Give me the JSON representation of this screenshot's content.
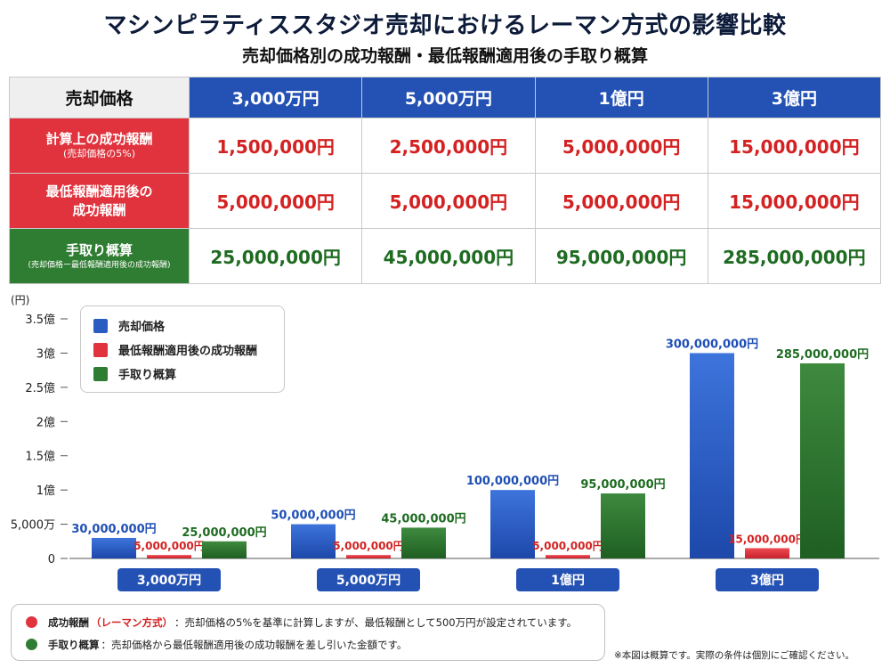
{
  "title": "マシンピラティススタジオ売却におけるレーマン方式の影響比較",
  "subtitle": "売却価格別の成功報酬・最低報酬適用後の手取り概算",
  "table": {
    "corner": "売却価格",
    "columns": [
      "3,000万円",
      "5,000万円",
      "1億円",
      "3億円"
    ],
    "rows": [
      {
        "label": "計算上の成功報酬",
        "sublabel": "(売却価格の5%)",
        "values": [
          "1,500,000円",
          "2,500,000円",
          "5,000,000円",
          "15,000,000円"
        ]
      },
      {
        "label": "最低報酬適用後の",
        "sublabel": "成功報酬",
        "values": [
          "5,000,000円",
          "5,000,000円",
          "5,000,000円",
          "15,000,000円"
        ]
      },
      {
        "label": "手取り概算",
        "sublabel": "(売却価格ー最低報酬適用後の成功報酬)",
        "values": [
          "25,000,000円",
          "45,000,000円",
          "95,000,000円",
          "285,000,000円"
        ]
      }
    ]
  },
  "legend": [
    "売却価格",
    "最低報酬適用後の成功報酬",
    "手取り概算"
  ],
  "colors": {
    "blue": "#2a5dc4",
    "red": "#e0333d",
    "green": "#2f7d32",
    "header_blue": "#2451b4"
  },
  "chart_data": {
    "type": "bar",
    "y_unit_label": "(円)",
    "categories": [
      "3,000万円",
      "5,000万円",
      "1億円",
      "3億円"
    ],
    "series": [
      {
        "name": "売却価格",
        "values": [
          30000000,
          50000000,
          100000000,
          300000000
        ],
        "labels": [
          "30,000,000円",
          "50,000,000円",
          "100,000,000円",
          "300,000,000円"
        ]
      },
      {
        "name": "最低報酬適用後の成功報酬",
        "values": [
          5000000,
          5000000,
          5000000,
          15000000
        ],
        "labels": [
          "5,000,000円",
          "5,000,000円",
          "5,000,000円",
          "15,000,000円"
        ]
      },
      {
        "name": "手取り概算",
        "values": [
          25000000,
          45000000,
          95000000,
          285000000
        ],
        "labels": [
          "25,000,000円",
          "45,000,000円",
          "95,000,000円",
          "285,000,000円"
        ]
      }
    ],
    "ylim": [
      0,
      350000000
    ],
    "yticks": [
      0,
      50000000,
      100000000,
      150000000,
      200000000,
      250000000,
      300000000,
      350000000
    ],
    "ytick_labels": [
      "0",
      "5,000万",
      "1億",
      "1.5億",
      "2億",
      "2.5億",
      "3億",
      "3.5億"
    ],
    "legend_position": "top-left",
    "grid": false
  },
  "notes": [
    {
      "label": "成功報酬",
      "tag": "（レーマン方式）",
      "text": "：売却価格の5%を基準に計算しますが、最低報酬として500万円が設定されています。",
      "color": "#e0333d"
    },
    {
      "label": "手取り概算",
      "tag": "",
      "text": "：売却価格から最低報酬適用後の成功報酬を差し引いた金額です。",
      "color": "#2f7d32"
    }
  ],
  "disclaimer": "※本図は概算です。実際の条件は個別にご確認ください。"
}
